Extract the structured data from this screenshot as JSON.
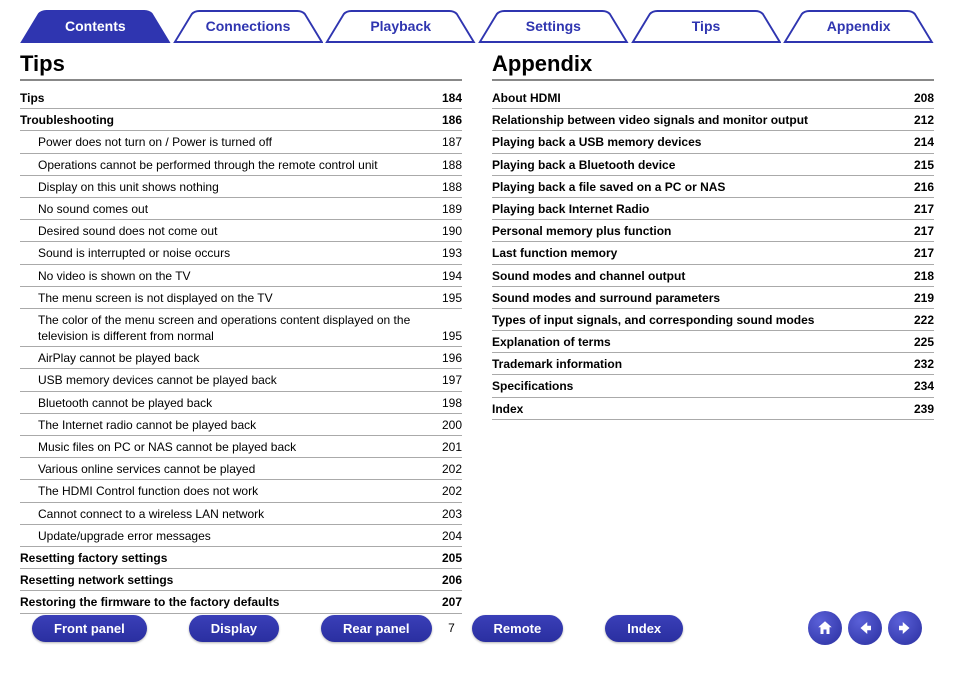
{
  "colors": {
    "accent": "#2f35b0",
    "tab_inactive_fill": "#ffffff",
    "tab_inactive_stroke": "#2f35b0",
    "tab_active_fill": "#2f35b0",
    "rule_color": "#aaaaaa",
    "heading_rule": "#888888"
  },
  "tabs": [
    {
      "label": "Contents",
      "active": true
    },
    {
      "label": "Connections",
      "active": false
    },
    {
      "label": "Playback",
      "active": false
    },
    {
      "label": "Settings",
      "active": false
    },
    {
      "label": "Tips",
      "active": false
    },
    {
      "label": "Appendix",
      "active": false
    }
  ],
  "left": {
    "heading": "Tips",
    "items": [
      {
        "label": "Tips",
        "page": 184,
        "bold": true,
        "indent": 0
      },
      {
        "label": "Troubleshooting",
        "page": 186,
        "bold": true,
        "indent": 0
      },
      {
        "label": "Power does not turn on / Power is turned off",
        "page": 187,
        "bold": false,
        "indent": 1
      },
      {
        "label": "Operations cannot be performed through the remote control unit",
        "page": 188,
        "bold": false,
        "indent": 1
      },
      {
        "label": "Display on this unit shows nothing",
        "page": 188,
        "bold": false,
        "indent": 1
      },
      {
        "label": "No sound comes out",
        "page": 189,
        "bold": false,
        "indent": 1
      },
      {
        "label": "Desired sound does not come out",
        "page": 190,
        "bold": false,
        "indent": 1
      },
      {
        "label": "Sound is interrupted or noise occurs",
        "page": 193,
        "bold": false,
        "indent": 1
      },
      {
        "label": "No video is shown on the TV",
        "page": 194,
        "bold": false,
        "indent": 1
      },
      {
        "label": "The menu screen is not displayed on the TV",
        "page": 195,
        "bold": false,
        "indent": 1
      },
      {
        "label": "The color of the menu screen and operations content displayed on the television is different from normal",
        "page": 195,
        "bold": false,
        "indent": 1
      },
      {
        "label": "AirPlay cannot be played back",
        "page": 196,
        "bold": false,
        "indent": 1
      },
      {
        "label": "USB memory devices cannot be played back",
        "page": 197,
        "bold": false,
        "indent": 1
      },
      {
        "label": "Bluetooth cannot be played back",
        "page": 198,
        "bold": false,
        "indent": 1
      },
      {
        "label": "The Internet radio cannot be played back",
        "page": 200,
        "bold": false,
        "indent": 1
      },
      {
        "label": "Music files on PC or NAS cannot be played back",
        "page": 201,
        "bold": false,
        "indent": 1
      },
      {
        "label": "Various online services cannot be played",
        "page": 202,
        "bold": false,
        "indent": 1
      },
      {
        "label": "The HDMI Control function does not work",
        "page": 202,
        "bold": false,
        "indent": 1
      },
      {
        "label": "Cannot connect to a wireless LAN network",
        "page": 203,
        "bold": false,
        "indent": 1
      },
      {
        "label": "Update/upgrade error messages",
        "page": 204,
        "bold": false,
        "indent": 1
      },
      {
        "label": "Resetting factory settings",
        "page": 205,
        "bold": true,
        "indent": 0
      },
      {
        "label": "Resetting network settings",
        "page": 206,
        "bold": true,
        "indent": 0
      },
      {
        "label": "Restoring the firmware to the factory defaults",
        "page": 207,
        "bold": true,
        "indent": 0
      }
    ]
  },
  "right": {
    "heading": "Appendix",
    "items": [
      {
        "label": "About HDMI",
        "page": 208,
        "bold": true,
        "indent": 0
      },
      {
        "label": "Relationship between video signals and monitor output",
        "page": 212,
        "bold": true,
        "indent": 0
      },
      {
        "label": "Playing back a USB memory devices",
        "page": 214,
        "bold": true,
        "indent": 0
      },
      {
        "label": "Playing back a Bluetooth device",
        "page": 215,
        "bold": true,
        "indent": 0
      },
      {
        "label": "Playing back a file saved on a PC or NAS",
        "page": 216,
        "bold": true,
        "indent": 0
      },
      {
        "label": "Playing back Internet Radio",
        "page": 217,
        "bold": true,
        "indent": 0
      },
      {
        "label": "Personal memory plus function",
        "page": 217,
        "bold": true,
        "indent": 0
      },
      {
        "label": "Last function memory",
        "page": 217,
        "bold": true,
        "indent": 0
      },
      {
        "label": "Sound modes and channel output",
        "page": 218,
        "bold": true,
        "indent": 0
      },
      {
        "label": "Sound modes and surround parameters",
        "page": 219,
        "bold": true,
        "indent": 0
      },
      {
        "label": "Types of input signals, and corresponding sound modes",
        "page": 222,
        "bold": true,
        "indent": 0
      },
      {
        "label": "Explanation of terms",
        "page": 225,
        "bold": true,
        "indent": 0
      },
      {
        "label": "Trademark information",
        "page": 232,
        "bold": true,
        "indent": 0
      },
      {
        "label": "Specifications",
        "page": 234,
        "bold": true,
        "indent": 0
      },
      {
        "label": "Index",
        "page": 239,
        "bold": true,
        "indent": 0
      }
    ]
  },
  "bottom": {
    "left_buttons": [
      {
        "label": "Front panel"
      },
      {
        "label": "Display"
      },
      {
        "label": "Rear panel"
      }
    ],
    "page_number": "7",
    "right_buttons": [
      {
        "label": "Remote"
      },
      {
        "label": "Index"
      }
    ]
  }
}
